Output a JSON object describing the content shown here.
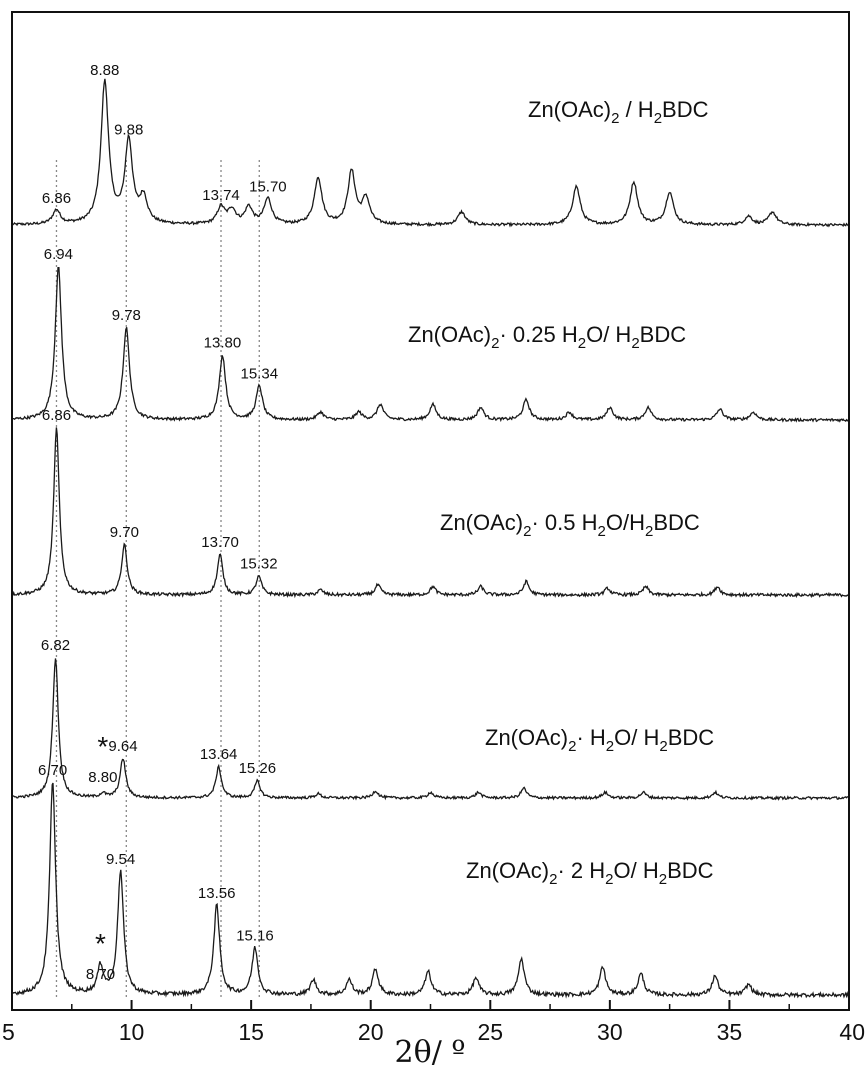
{
  "chart_data": {
    "type": "line",
    "xlabel": "2θ/ º",
    "xlim": [
      5,
      40
    ],
    "x_ticks": [
      5,
      10,
      15,
      20,
      25,
      30,
      35,
      40
    ],
    "grid": false,
    "reference_lines": [
      6.86,
      9.78,
      13.74,
      15.34
    ],
    "series": [
      {
        "name_parts": [
          "Zn(OAc)",
          "2",
          " / H",
          "2",
          "BDC"
        ],
        "peaks": [
          {
            "x": 6.86,
            "h": 0.1,
            "label": "6.86"
          },
          {
            "x": 8.88,
            "h": 1.0,
            "label": "8.88"
          },
          {
            "x": 9.88,
            "h": 0.58,
            "label": "9.88"
          },
          {
            "x": 10.5,
            "h": 0.18
          },
          {
            "x": 13.74,
            "h": 0.12,
            "label": "13.74"
          },
          {
            "x": 14.2,
            "h": 0.1
          },
          {
            "x": 14.9,
            "h": 0.12
          },
          {
            "x": 15.7,
            "h": 0.18,
            "label": "15.70"
          },
          {
            "x": 17.8,
            "h": 0.33
          },
          {
            "x": 19.2,
            "h": 0.37
          },
          {
            "x": 19.8,
            "h": 0.18
          },
          {
            "x": 23.8,
            "h": 0.09
          },
          {
            "x": 28.6,
            "h": 0.27
          },
          {
            "x": 31.0,
            "h": 0.3
          },
          {
            "x": 32.5,
            "h": 0.23
          },
          {
            "x": 35.8,
            "h": 0.06
          },
          {
            "x": 36.8,
            "h": 0.09
          }
        ]
      },
      {
        "name_parts": [
          "Zn(OAc)",
          "2",
          "· 0.25 H",
          "2",
          "O/ H",
          "2",
          "BDC"
        ],
        "peaks": [
          {
            "x": 6.94,
            "h": 1.0,
            "label": "6.94"
          },
          {
            "x": 9.78,
            "h": 0.6,
            "label": "9.78"
          },
          {
            "x": 13.8,
            "h": 0.42,
            "label": "13.80"
          },
          {
            "x": 15.34,
            "h": 0.22,
            "label": "15.34"
          },
          {
            "x": 17.9,
            "h": 0.05
          },
          {
            "x": 19.5,
            "h": 0.05
          },
          {
            "x": 20.4,
            "h": 0.1
          },
          {
            "x": 22.6,
            "h": 0.1
          },
          {
            "x": 24.6,
            "h": 0.08
          },
          {
            "x": 26.5,
            "h": 0.13
          },
          {
            "x": 28.3,
            "h": 0.05
          },
          {
            "x": 30.0,
            "h": 0.08
          },
          {
            "x": 31.6,
            "h": 0.08
          },
          {
            "x": 34.6,
            "h": 0.07
          },
          {
            "x": 36.0,
            "h": 0.05
          }
        ]
      },
      {
        "name_parts": [
          "Zn(OAc)",
          "2",
          "· 0.5 H",
          "2",
          "O/H",
          "2",
          "BDC"
        ],
        "peaks": [
          {
            "x": 6.86,
            "h": 1.0,
            "label": "6.86"
          },
          {
            "x": 9.7,
            "h": 0.3,
            "label": "9.70"
          },
          {
            "x": 13.7,
            "h": 0.24,
            "label": "13.70"
          },
          {
            "x": 15.32,
            "h": 0.11,
            "label": "15.32"
          },
          {
            "x": 17.9,
            "h": 0.03
          },
          {
            "x": 20.3,
            "h": 0.06
          },
          {
            "x": 22.6,
            "h": 0.05
          },
          {
            "x": 24.6,
            "h": 0.05
          },
          {
            "x": 26.5,
            "h": 0.08
          },
          {
            "x": 29.9,
            "h": 0.04
          },
          {
            "x": 31.5,
            "h": 0.05
          },
          {
            "x": 34.5,
            "h": 0.05
          }
        ]
      },
      {
        "name_parts": [
          "Zn(OAc)",
          "2",
          "· H",
          "2",
          "O/ H",
          "2",
          "BDC"
        ],
        "peaks": [
          {
            "x": 6.82,
            "h": 1.0,
            "label": "6.82"
          },
          {
            "x": 8.8,
            "h": 0.03,
            "label": "8.80",
            "star": true
          },
          {
            "x": 9.64,
            "h": 0.28,
            "label": "9.64"
          },
          {
            "x": 13.64,
            "h": 0.22,
            "label": "13.64"
          },
          {
            "x": 15.26,
            "h": 0.12,
            "label": "15.26"
          },
          {
            "x": 17.8,
            "h": 0.03
          },
          {
            "x": 20.2,
            "h": 0.05
          },
          {
            "x": 22.5,
            "h": 0.04
          },
          {
            "x": 24.5,
            "h": 0.04
          },
          {
            "x": 26.4,
            "h": 0.07
          },
          {
            "x": 29.8,
            "h": 0.04
          },
          {
            "x": 31.4,
            "h": 0.04
          },
          {
            "x": 34.4,
            "h": 0.04
          }
        ]
      },
      {
        "name_parts": [
          "Zn(OAc)",
          "2",
          "· 2 H",
          "2",
          "O/ H",
          "2",
          "BDC"
        ],
        "peaks": [
          {
            "x": 6.7,
            "h": 1.0,
            "label": "6.70"
          },
          {
            "x": 8.7,
            "h": 0.13,
            "label": "8.70",
            "star": true
          },
          {
            "x": 9.54,
            "h": 0.58,
            "label": "9.54"
          },
          {
            "x": 13.56,
            "h": 0.42,
            "label": "13.56"
          },
          {
            "x": 15.16,
            "h": 0.22,
            "label": "15.16"
          },
          {
            "x": 17.6,
            "h": 0.07
          },
          {
            "x": 19.1,
            "h": 0.07
          },
          {
            "x": 20.2,
            "h": 0.12
          },
          {
            "x": 22.4,
            "h": 0.11
          },
          {
            "x": 24.4,
            "h": 0.08
          },
          {
            "x": 26.3,
            "h": 0.17
          },
          {
            "x": 29.7,
            "h": 0.13
          },
          {
            "x": 31.3,
            "h": 0.1
          },
          {
            "x": 34.4,
            "h": 0.09
          },
          {
            "x": 35.8,
            "h": 0.05
          }
        ]
      }
    ]
  }
}
